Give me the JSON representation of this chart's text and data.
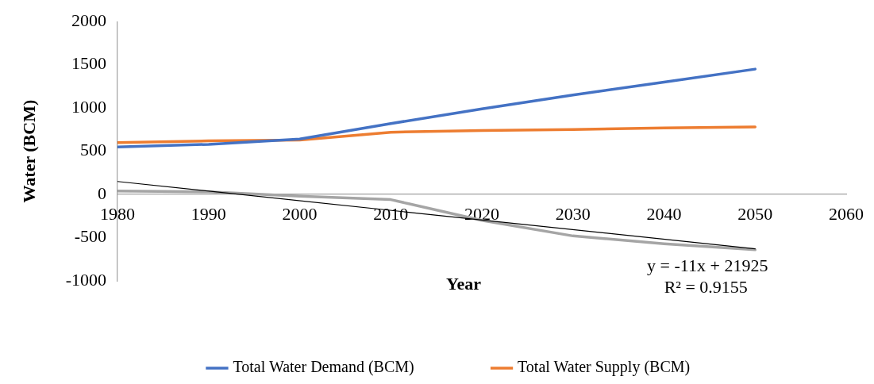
{
  "chart_data": {
    "type": "line",
    "xlabel": "Year",
    "ylabel": "Water (BCM)",
    "x": [
      1980,
      1990,
      2000,
      2010,
      2020,
      2030,
      2040,
      2050
    ],
    "series": [
      {
        "name": "Total Water Demand (BCM)",
        "color": "#4472c4",
        "values": [
          550,
          580,
          640,
          820,
          990,
          1150,
          1300,
          1450
        ]
      },
      {
        "name": "Total Water Supply (BCM)",
        "color": "#ed7d31",
        "values": [
          600,
          620,
          630,
          720,
          740,
          750,
          770,
          780
        ]
      },
      {
        "color": "#a5a5a5",
        "values": [
          40,
          30,
          -20,
          -60,
          -300,
          -480,
          -570,
          -640
        ]
      },
      {
        "color": "#000000",
        "x": [
          1980,
          2050
        ],
        "values": [
          150,
          -630
        ]
      }
    ],
    "xlim": [
      1980,
      2060
    ],
    "xticks": [
      1980,
      1990,
      2000,
      2010,
      2020,
      2030,
      2040,
      2050,
      2060
    ],
    "ylim": [
      -1000,
      2000
    ],
    "yticks": [
      -1000,
      -500,
      0,
      500,
      1000,
      1500,
      2000
    ],
    "grid": false,
    "legend": "bottom",
    "marker": "none",
    "line_style": "solid",
    "annotations": [
      {
        "text": "y = -11x + 21925",
        "x": 2050,
        "y": -630
      },
      {
        "text": "R² = 0.9155",
        "x": 2050,
        "y": -630
      }
    ]
  }
}
